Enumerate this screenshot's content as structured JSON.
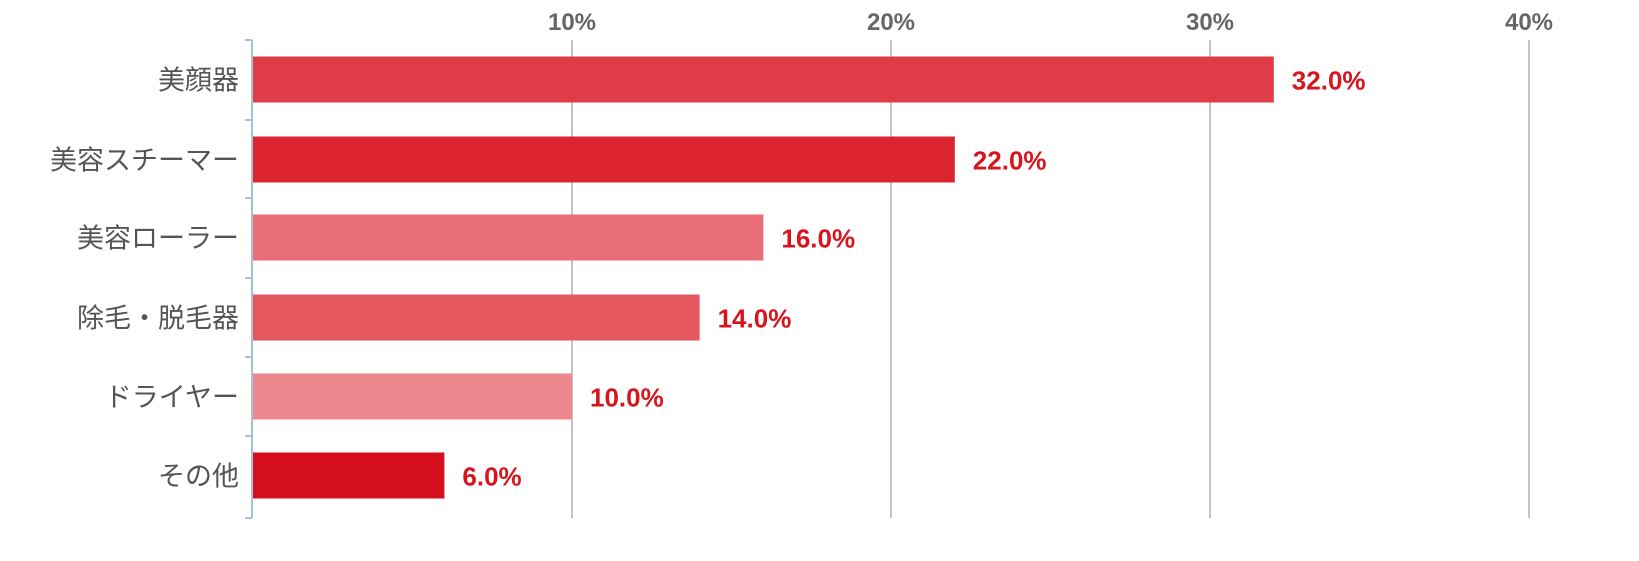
{
  "chart_data": {
    "type": "bar",
    "orientation": "horizontal",
    "categories": [
      "美顔器",
      "美容スチーマー",
      "美容ローラー",
      "除毛・脱毛器",
      "ドライヤー",
      "その他"
    ],
    "values": [
      32.0,
      22.0,
      16.0,
      14.0,
      10.0,
      6.0
    ],
    "data_labels": [
      "32.0%",
      "22.0%",
      "16.0%",
      "14.0%",
      "10.0%",
      "6.0%"
    ],
    "bar_colors": [
      "#e03c47",
      "#dc2430",
      "#e96e77",
      "#e4575f",
      "#ee868d",
      "#d40e1a"
    ],
    "label_color": "#d7151d",
    "xlim": [
      0,
      40
    ],
    "xticks": [
      10,
      20,
      30,
      40
    ],
    "xtick_labels": [
      "10%",
      "20%",
      "30%",
      "40%"
    ],
    "xaxis_position": "top",
    "grid": true,
    "title": "",
    "xlabel": "",
    "ylabel": ""
  }
}
